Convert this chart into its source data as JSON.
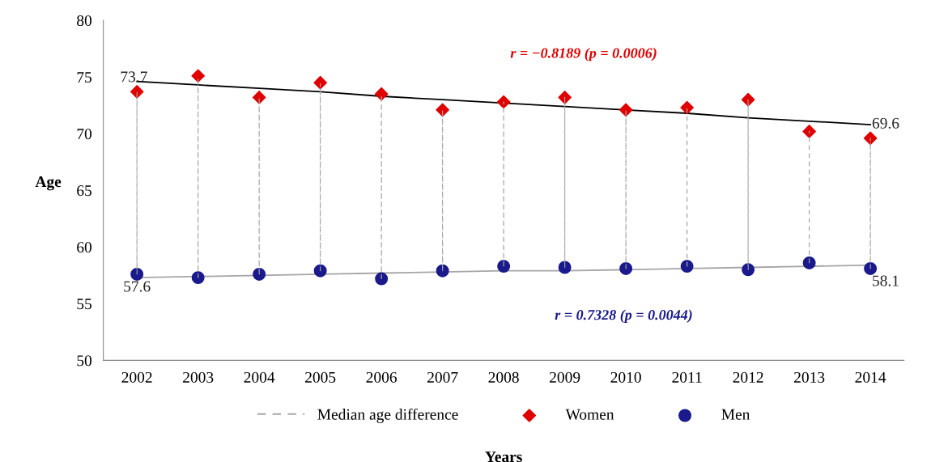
{
  "chart_data": {
    "type": "scatter",
    "xlabel": "Years",
    "ylabel": "Age",
    "categories": [
      "2002",
      "2003",
      "2004",
      "2005",
      "2006",
      "2007",
      "2008",
      "2009",
      "2010",
      "2011",
      "2012",
      "2013",
      "2014"
    ],
    "ylim": [
      50,
      80
    ],
    "yticks": [
      50,
      55,
      60,
      65,
      70,
      75,
      80
    ],
    "grid": false,
    "legend": "bottom",
    "series": [
      {
        "name": "Median age difference",
        "type": "bar",
        "color": "#a6a6a6",
        "line_style": "dashed",
        "base": [
          57.6,
          57.3,
          57.6,
          57.9,
          57.2,
          57.9,
          58.3,
          58.2,
          58.1,
          58.3,
          58.0,
          58.6,
          58.1
        ],
        "values": [
          16.1,
          17.6,
          15.6,
          16.5,
          16.2,
          14.2,
          14.5,
          15.0,
          14.0,
          14.1,
          15.0,
          11.6,
          11.5
        ]
      },
      {
        "type": "line",
        "color": "#000000",
        "values": [
          74.6,
          74.3,
          74.0,
          73.7,
          73.3,
          73.0,
          72.7,
          72.4,
          72.1,
          71.8,
          71.4,
          71.1,
          70.8
        ]
      },
      {
        "type": "line",
        "color": "#a6a6a6",
        "values": [
          57.3,
          57.4,
          57.5,
          57.6,
          57.7,
          57.8,
          57.9,
          57.9,
          58.0,
          58.1,
          58.2,
          58.3,
          58.4
        ]
      },
      {
        "name": "Women",
        "marker": "diamond",
        "color": "#e00000",
        "values": [
          73.7,
          75.1,
          73.2,
          74.5,
          73.5,
          72.1,
          72.8,
          73.2,
          72.1,
          72.3,
          73.0,
          70.2,
          69.6
        ],
        "value_labels": [
          "73.7",
          null,
          null,
          null,
          null,
          null,
          null,
          null,
          null,
          null,
          null,
          null,
          "69.6"
        ]
      },
      {
        "name": "Men",
        "marker": "circle",
        "color": "#1a1a8c",
        "values": [
          57.6,
          57.3,
          57.6,
          57.9,
          57.2,
          57.9,
          58.3,
          58.2,
          58.1,
          58.3,
          58.0,
          58.6,
          58.1
        ],
        "value_labels": [
          "57.6",
          null,
          null,
          null,
          null,
          null,
          null,
          null,
          null,
          null,
          null,
          null,
          "58.1"
        ]
      }
    ],
    "annotations": [
      "r = −0.8189 (p = 0.0006)",
      "r = 0.7328 (p = 0.0044)"
    ]
  }
}
